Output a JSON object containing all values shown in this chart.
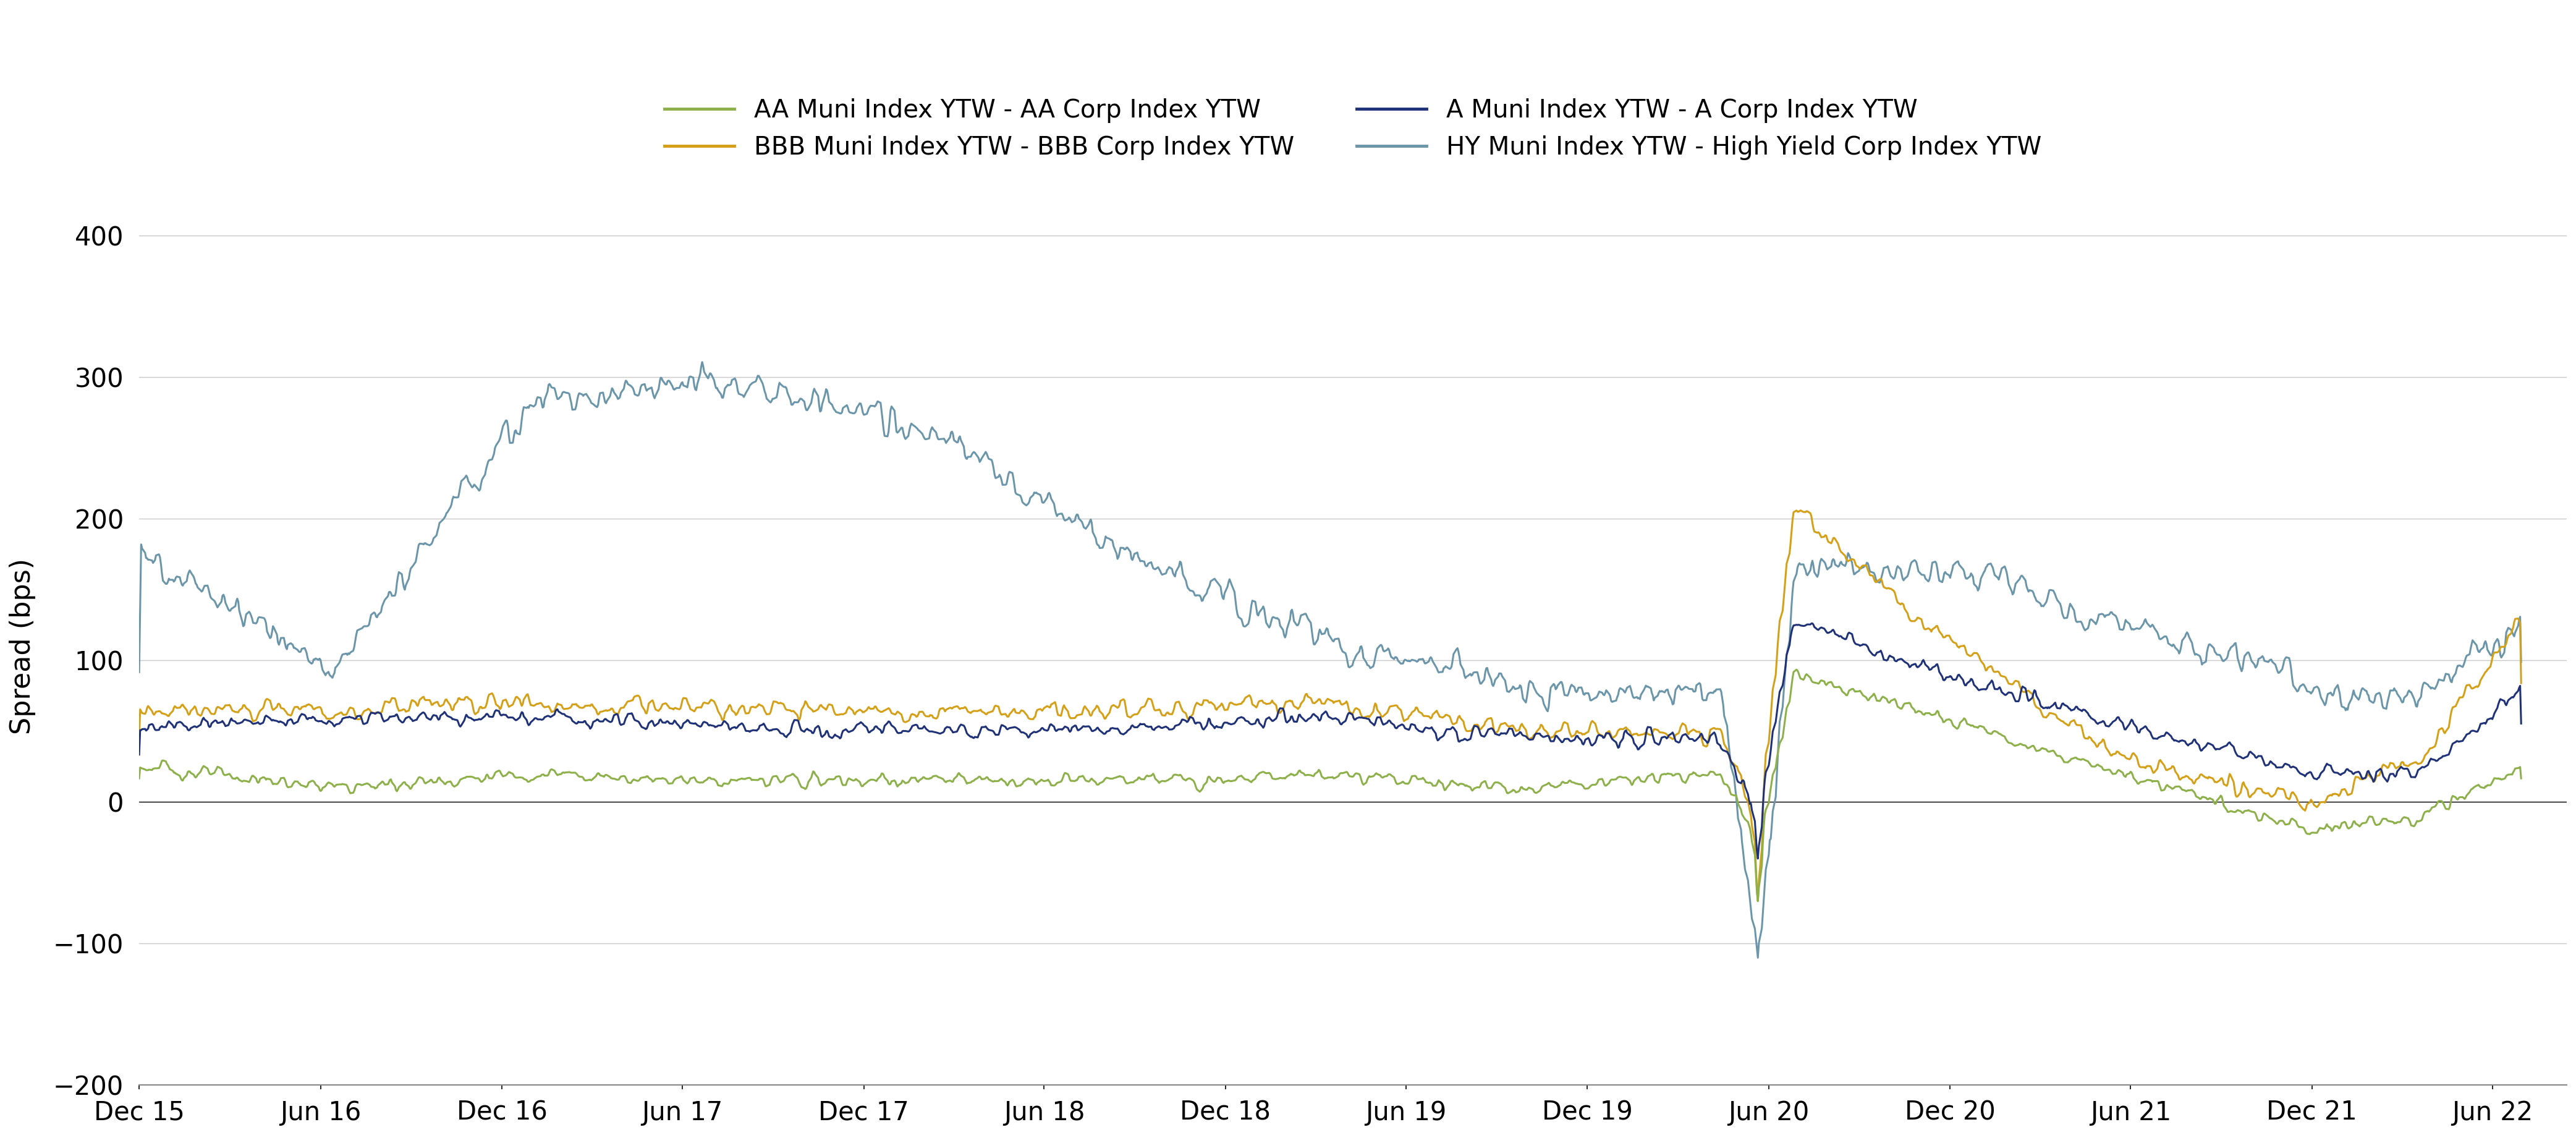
{
  "ylabel": "Spread (bps)",
  "ylim": [
    -200,
    420
  ],
  "yticks": [
    -200,
    -100,
    0,
    100,
    200,
    300,
    400
  ],
  "colors": {
    "AA": "#8db04a",
    "A": "#1f3278",
    "BBB": "#d4a017",
    "HY": "#6b96aa"
  },
  "legend": [
    "AA Muni Index YTW - AA Corp Index YTW",
    "A Muni Index YTW - A Corp Index YTW",
    "BBB Muni Index YTW - BBB Corp Index YTW",
    "HY Muni Index YTW - High Yield Corp Index YTW"
  ],
  "xtick_labels": [
    "Dec 15",
    "Jun 16",
    "Dec 16",
    "Jun 17",
    "Dec 17",
    "Jun 18",
    "Dec 18",
    "Jun 19",
    "Dec 19",
    "Jun 20",
    "Dec 20",
    "Jun 21",
    "Dec 21",
    "Jun 22"
  ],
  "background_color": "#ffffff",
  "grid_color": "#c8c8c8",
  "linewidth": 2.2
}
